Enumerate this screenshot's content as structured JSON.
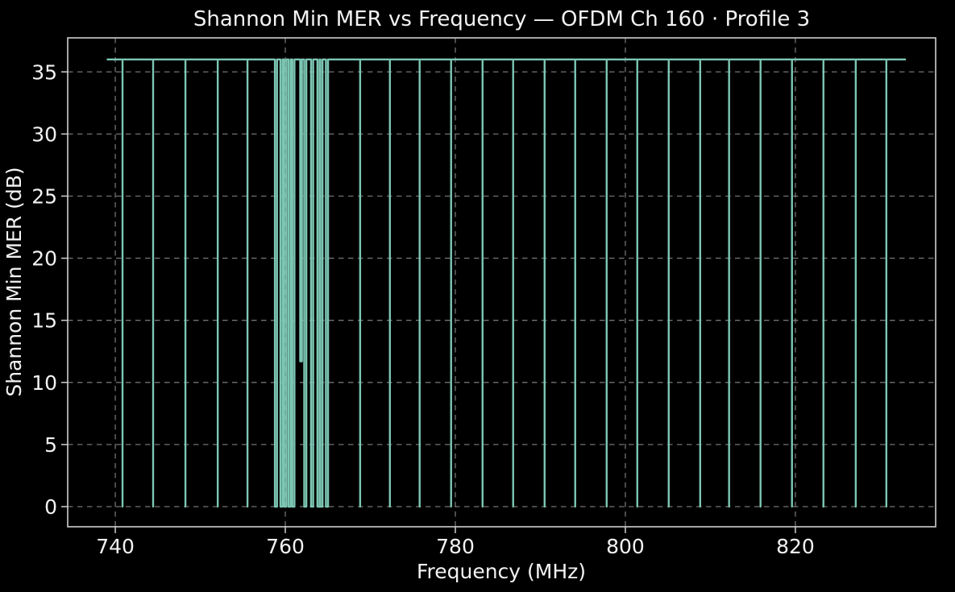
{
  "figure": {
    "background": "#000000",
    "text_color": "#f2f2f2"
  },
  "chart_data": {
    "type": "line",
    "title": "Shannon Min MER vs Frequency — OFDM Ch 160 · Profile 3",
    "xlabel": "Frequency (MHz)",
    "ylabel": "Shannon Min MER (dB)",
    "x_ticks": [
      740,
      760,
      780,
      800,
      820
    ],
    "y_ticks": [
      0,
      5,
      10,
      15,
      20,
      25,
      30,
      35
    ],
    "xlim": [
      734.4,
      836.5
    ],
    "ylim": [
      -1.62,
      37.74
    ],
    "grid": "dashed, both axes",
    "legend_position": "none",
    "line_color": "#7CC7B4",
    "grid_color": "#808080",
    "spine_color": "#CFCFCF",
    "baseline_value": 36,
    "x_start": 739.0,
    "x_end": 833.0,
    "notch_default_value": 0,
    "drops": [
      {
        "f": 740.85,
        "v": 0
      },
      {
        "f": 744.45,
        "v": 0
      },
      {
        "f": 748.25,
        "v": 0
      },
      {
        "f": 752.05,
        "v": 0
      },
      {
        "f": 755.55,
        "v": 0
      },
      {
        "f": 758.9,
        "v": 0,
        "w": 0.25
      },
      {
        "f": 759.55,
        "v": 0,
        "w": 0.25
      },
      {
        "f": 760.0,
        "v": 0,
        "w": 0.25
      },
      {
        "f": 760.5,
        "v": 0,
        "w": 0.25
      },
      {
        "f": 760.95,
        "v": 0,
        "w": 0.25
      },
      {
        "f": 761.85,
        "v": 11.7,
        "w": 0.2
      },
      {
        "f": 762.35,
        "v": 0,
        "w": 0.25
      },
      {
        "f": 763.15,
        "v": 0,
        "w": 0.25
      },
      {
        "f": 763.9,
        "v": 0,
        "w": 0.25
      },
      {
        "f": 764.25,
        "v": 0,
        "w": 0.25
      },
      {
        "f": 764.9,
        "v": 0,
        "w": 0.25
      },
      {
        "f": 768.8,
        "v": 0
      },
      {
        "f": 772.3,
        "v": 0
      },
      {
        "f": 775.8,
        "v": 0
      },
      {
        "f": 779.5,
        "v": 0
      },
      {
        "f": 783.2,
        "v": 0
      },
      {
        "f": 786.8,
        "v": 0
      },
      {
        "f": 790.5,
        "v": 0
      },
      {
        "f": 794.1,
        "v": 0
      },
      {
        "f": 797.8,
        "v": 0
      },
      {
        "f": 801.4,
        "v": 0
      },
      {
        "f": 805.1,
        "v": 0
      },
      {
        "f": 808.8,
        "v": 0
      },
      {
        "f": 812.2,
        "v": 0
      },
      {
        "f": 815.9,
        "v": 0
      },
      {
        "f": 819.6,
        "v": 0
      },
      {
        "f": 823.3,
        "v": 0
      },
      {
        "f": 827.1,
        "v": 0
      },
      {
        "f": 830.7,
        "v": 0
      }
    ]
  }
}
